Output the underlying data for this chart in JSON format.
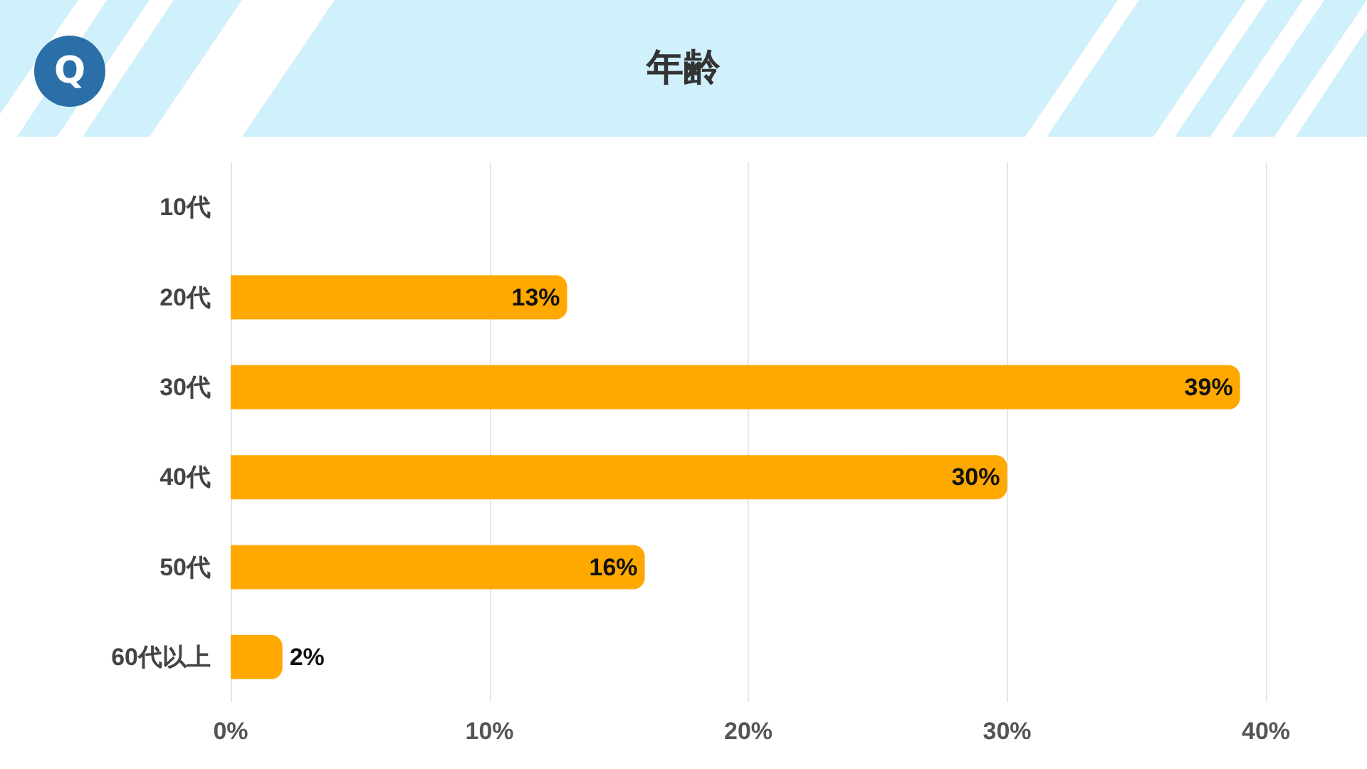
{
  "chart_data": {
    "type": "bar",
    "orientation": "horizontal",
    "title": "年齢",
    "annotations": [
      "Q"
    ],
    "categories": [
      "10代",
      "20代",
      "30代",
      "40代",
      "50代",
      "60代以上"
    ],
    "values": [
      0,
      13,
      39,
      30,
      16,
      2
    ],
    "value_labels": [
      null,
      "13%",
      "39%",
      "30%",
      "16%",
      "2%"
    ],
    "color": "#ffa800",
    "xlim": [
      0,
      40
    ],
    "xticks": [
      {
        "value": 0,
        "label": "0%"
      },
      {
        "value": 10,
        "label": "10%"
      },
      {
        "value": 20,
        "label": "20%"
      },
      {
        "value": 30,
        "label": "30%"
      },
      {
        "value": 40,
        "label": "40%"
      }
    ],
    "grid": "x"
  }
}
